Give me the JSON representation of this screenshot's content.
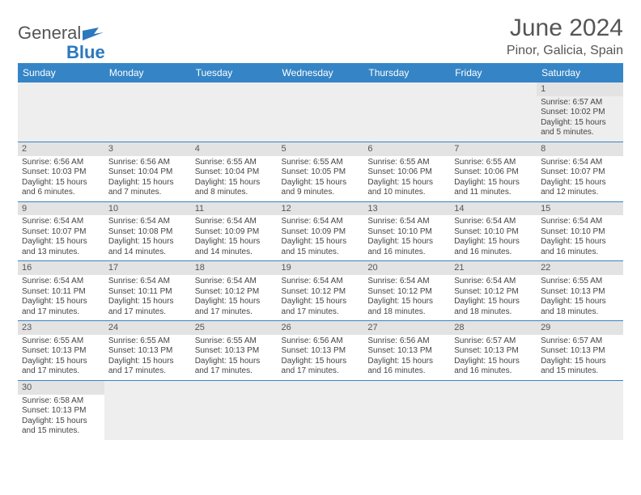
{
  "logo": {
    "part1": "General",
    "part2": "Blue"
  },
  "title": "June 2024",
  "location": "Pinor, Galicia, Spain",
  "weekdays": [
    "Sunday",
    "Monday",
    "Tuesday",
    "Wednesday",
    "Thursday",
    "Friday",
    "Saturday"
  ],
  "colors": {
    "header_bg": "#3585c6",
    "header_text": "#ffffff",
    "daynum_bg": "#e3e3e3",
    "row_divider": "#3585c6",
    "text": "#444444",
    "logo_blue": "#2b78bf"
  },
  "firstDayOffset": 6,
  "days": [
    {
      "n": 1,
      "sunrise": "6:57 AM",
      "sunset": "10:02 PM",
      "daylight": "15 hours and 5 minutes."
    },
    {
      "n": 2,
      "sunrise": "6:56 AM",
      "sunset": "10:03 PM",
      "daylight": "15 hours and 6 minutes."
    },
    {
      "n": 3,
      "sunrise": "6:56 AM",
      "sunset": "10:04 PM",
      "daylight": "15 hours and 7 minutes."
    },
    {
      "n": 4,
      "sunrise": "6:55 AM",
      "sunset": "10:04 PM",
      "daylight": "15 hours and 8 minutes."
    },
    {
      "n": 5,
      "sunrise": "6:55 AM",
      "sunset": "10:05 PM",
      "daylight": "15 hours and 9 minutes."
    },
    {
      "n": 6,
      "sunrise": "6:55 AM",
      "sunset": "10:06 PM",
      "daylight": "15 hours and 10 minutes."
    },
    {
      "n": 7,
      "sunrise": "6:55 AM",
      "sunset": "10:06 PM",
      "daylight": "15 hours and 11 minutes."
    },
    {
      "n": 8,
      "sunrise": "6:54 AM",
      "sunset": "10:07 PM",
      "daylight": "15 hours and 12 minutes."
    },
    {
      "n": 9,
      "sunrise": "6:54 AM",
      "sunset": "10:07 PM",
      "daylight": "15 hours and 13 minutes."
    },
    {
      "n": 10,
      "sunrise": "6:54 AM",
      "sunset": "10:08 PM",
      "daylight": "15 hours and 14 minutes."
    },
    {
      "n": 11,
      "sunrise": "6:54 AM",
      "sunset": "10:09 PM",
      "daylight": "15 hours and 14 minutes."
    },
    {
      "n": 12,
      "sunrise": "6:54 AM",
      "sunset": "10:09 PM",
      "daylight": "15 hours and 15 minutes."
    },
    {
      "n": 13,
      "sunrise": "6:54 AM",
      "sunset": "10:10 PM",
      "daylight": "15 hours and 16 minutes."
    },
    {
      "n": 14,
      "sunrise": "6:54 AM",
      "sunset": "10:10 PM",
      "daylight": "15 hours and 16 minutes."
    },
    {
      "n": 15,
      "sunrise": "6:54 AM",
      "sunset": "10:10 PM",
      "daylight": "15 hours and 16 minutes."
    },
    {
      "n": 16,
      "sunrise": "6:54 AM",
      "sunset": "10:11 PM",
      "daylight": "15 hours and 17 minutes."
    },
    {
      "n": 17,
      "sunrise": "6:54 AM",
      "sunset": "10:11 PM",
      "daylight": "15 hours and 17 minutes."
    },
    {
      "n": 18,
      "sunrise": "6:54 AM",
      "sunset": "10:12 PM",
      "daylight": "15 hours and 17 minutes."
    },
    {
      "n": 19,
      "sunrise": "6:54 AM",
      "sunset": "10:12 PM",
      "daylight": "15 hours and 17 minutes."
    },
    {
      "n": 20,
      "sunrise": "6:54 AM",
      "sunset": "10:12 PM",
      "daylight": "15 hours and 18 minutes."
    },
    {
      "n": 21,
      "sunrise": "6:54 AM",
      "sunset": "10:12 PM",
      "daylight": "15 hours and 18 minutes."
    },
    {
      "n": 22,
      "sunrise": "6:55 AM",
      "sunset": "10:13 PM",
      "daylight": "15 hours and 18 minutes."
    },
    {
      "n": 23,
      "sunrise": "6:55 AM",
      "sunset": "10:13 PM",
      "daylight": "15 hours and 17 minutes."
    },
    {
      "n": 24,
      "sunrise": "6:55 AM",
      "sunset": "10:13 PM",
      "daylight": "15 hours and 17 minutes."
    },
    {
      "n": 25,
      "sunrise": "6:55 AM",
      "sunset": "10:13 PM",
      "daylight": "15 hours and 17 minutes."
    },
    {
      "n": 26,
      "sunrise": "6:56 AM",
      "sunset": "10:13 PM",
      "daylight": "15 hours and 17 minutes."
    },
    {
      "n": 27,
      "sunrise": "6:56 AM",
      "sunset": "10:13 PM",
      "daylight": "15 hours and 16 minutes."
    },
    {
      "n": 28,
      "sunrise": "6:57 AM",
      "sunset": "10:13 PM",
      "daylight": "15 hours and 16 minutes."
    },
    {
      "n": 29,
      "sunrise": "6:57 AM",
      "sunset": "10:13 PM",
      "daylight": "15 hours and 15 minutes."
    },
    {
      "n": 30,
      "sunrise": "6:58 AM",
      "sunset": "10:13 PM",
      "daylight": "15 hours and 15 minutes."
    }
  ],
  "labels": {
    "sunrise": "Sunrise:",
    "sunset": "Sunset:",
    "daylight": "Daylight:"
  }
}
